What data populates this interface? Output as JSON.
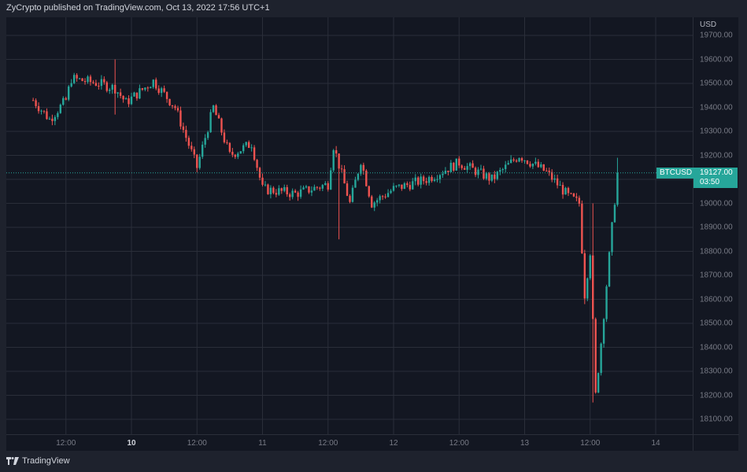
{
  "header": {
    "attribution": "ZyCrypto published on TradingView.com, Oct 13, 2022 17:56 UTC+1"
  },
  "price_axis": {
    "currency": "USD",
    "labels": [
      "19700.00",
      "19600.00",
      "19500.00",
      "19400.00",
      "19300.00",
      "19200.00",
      "19000.00",
      "18900.00",
      "18800.00",
      "18700.00",
      "18600.00",
      "18500.00",
      "18400.00",
      "18300.00",
      "18200.00",
      "18100.00"
    ]
  },
  "time_axis": {
    "labels": [
      {
        "text": "12:00",
        "bold": false
      },
      {
        "text": "10",
        "bold": true
      },
      {
        "text": "12:00",
        "bold": false
      },
      {
        "text": "11",
        "bold": false
      },
      {
        "text": "12:00",
        "bold": false
      },
      {
        "text": "12",
        "bold": false
      },
      {
        "text": "12:00",
        "bold": false
      },
      {
        "text": "13",
        "bold": false
      },
      {
        "text": "12:00",
        "bold": false
      },
      {
        "text": "14",
        "bold": false
      }
    ]
  },
  "symbol": {
    "ticker": "BTCUSD",
    "last_price": "19127.00",
    "countdown": "03:50"
  },
  "footer": {
    "brand": "TradingView"
  },
  "colors": {
    "up": "#26a69a",
    "down": "#ef5350",
    "background": "#131722",
    "frame": "#1e222d",
    "grid": "#2a2e39",
    "accent": "#26a69a"
  },
  "chart_data": {
    "type": "candlestick",
    "title": "BTCUSD",
    "xlabel": "",
    "ylabel": "USD",
    "ylim": [
      18050,
      19750
    ],
    "y_ticks": [
      18100,
      18200,
      18300,
      18400,
      18500,
      18600,
      18700,
      18800,
      18900,
      19000,
      19100,
      19200,
      19300,
      19400,
      19500,
      19600,
      19700
    ],
    "x_ticks": [
      "12:00",
      "10",
      "12:00",
      "11",
      "12:00",
      "12",
      "12:00",
      "13",
      "12:00",
      "14"
    ],
    "grid": true,
    "last_price": 19127.0,
    "price_path": [
      {
        "t": "Oct 9 06:00",
        "p": 19430
      },
      {
        "t": "Oct 9 09:00",
        "p": 19350
      },
      {
        "t": "Oct 9 12:00",
        "p": 19430
      },
      {
        "t": "Oct 9 13:00",
        "p": 19520
      },
      {
        "t": "Oct 9 18:00",
        "p": 19500
      },
      {
        "t": "Oct 9 21:00",
        "p": 19480
      },
      {
        "t": "Oct 9 23:00",
        "p": 19420
      },
      {
        "t": "Oct 10 04:00",
        "p": 19510
      },
      {
        "t": "Oct 10 08:00",
        "p": 19400
      },
      {
        "t": "Oct 10 12:00",
        "p": 19150
      },
      {
        "t": "Oct 10 15:00",
        "p": 19400
      },
      {
        "t": "Oct 10 18:00",
        "p": 19200
      },
      {
        "t": "Oct 10 22:00",
        "p": 19250
      },
      {
        "t": "Oct 11 00:00",
        "p": 19060
      },
      {
        "t": "Oct 11 06:00",
        "p": 19040
      },
      {
        "t": "Oct 11 12:00",
        "p": 19080
      },
      {
        "t": "Oct 11 13:00",
        "p": 19240
      },
      {
        "t": "Oct 11 16:00",
        "p": 19000
      },
      {
        "t": "Oct 11 18:00",
        "p": 19180
      },
      {
        "t": "Oct 11 20:00",
        "p": 19000
      },
      {
        "t": "Oct 12 00:00",
        "p": 19060
      },
      {
        "t": "Oct 12 06:00",
        "p": 19100
      },
      {
        "t": "Oct 12 12:00",
        "p": 19170
      },
      {
        "t": "Oct 12 18:00",
        "p": 19100
      },
      {
        "t": "Oct 12 23:00",
        "p": 19200
      },
      {
        "t": "Oct 13 04:00",
        "p": 19130
      },
      {
        "t": "Oct 13 08:00",
        "p": 19030
      },
      {
        "t": "Oct 13 10:00",
        "p": 19000
      },
      {
        "t": "Oct 13 11:00",
        "p": 18620
      },
      {
        "t": "Oct 13 12:00",
        "p": 18800
      },
      {
        "t": "Oct 13 13:00",
        "p": 18200
      },
      {
        "t": "Oct 13 14:00",
        "p": 18420
      },
      {
        "t": "Oct 13 16:00",
        "p": 18900
      },
      {
        "t": "Oct 13 17:00",
        "p": 19127
      }
    ],
    "notable_wicks": [
      {
        "t": "Oct 9 21:00",
        "high": 19600,
        "low": 19370
      },
      {
        "t": "Oct 11 14:00",
        "low": 18850
      },
      {
        "t": "Oct 13 11:00",
        "low": 18580
      },
      {
        "t": "Oct 13 12:30",
        "high": 19000,
        "low": 18170
      },
      {
        "t": "Oct 13 17:00",
        "high": 19190
      }
    ],
    "range_low": 18170,
    "range_high": 19600
  }
}
